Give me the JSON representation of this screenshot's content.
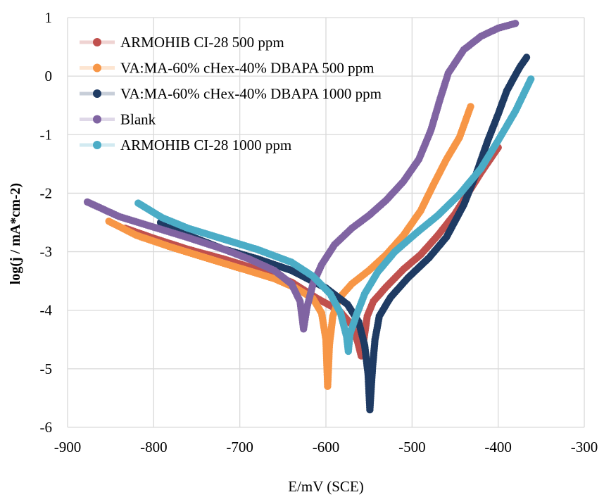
{
  "chart_data": {
    "type": "scatter",
    "title": "",
    "xlabel": "E/mV (SCE)",
    "ylabel": "log(j / mA*cm-2)",
    "xlim": [
      -900,
      -300
    ],
    "ylim": [
      -6,
      1
    ],
    "x_ticks": [
      "-900",
      "-800",
      "-700",
      "-600",
      "-500",
      "-400",
      "-300"
    ],
    "y_ticks": [
      "1",
      "0",
      "-1",
      "-2",
      "-3",
      "-4",
      "-5",
      "-6"
    ],
    "grid": true,
    "legend_position": "top-left",
    "series": [
      {
        "name": "ARMOHIB CI-28  500 ppm",
        "color": "#c0504d",
        "points": [
          [
            -833,
            -2.6
          ],
          [
            -800,
            -2.77
          ],
          [
            -760,
            -2.96
          ],
          [
            -720,
            -3.12
          ],
          [
            -680,
            -3.3
          ],
          [
            -640,
            -3.52
          ],
          [
            -610,
            -3.8
          ],
          [
            -585,
            -4.0
          ],
          [
            -570,
            -4.25
          ],
          [
            -563,
            -4.55
          ],
          [
            -559,
            -4.78
          ],
          [
            -556,
            -4.5
          ],
          [
            -552,
            -4.1
          ],
          [
            -545,
            -3.85
          ],
          [
            -530,
            -3.6
          ],
          [
            -510,
            -3.3
          ],
          [
            -490,
            -3.05
          ],
          [
            -470,
            -2.72
          ],
          [
            -450,
            -2.35
          ],
          [
            -435,
            -2.0
          ],
          [
            -420,
            -1.65
          ],
          [
            -400,
            -1.22
          ]
        ]
      },
      {
        "name": "VA:MA-60% cHex-40% DBAPA 500 ppm",
        "color": "#f79646",
        "points": [
          [
            -852,
            -2.48
          ],
          [
            -820,
            -2.72
          ],
          [
            -780,
            -2.92
          ],
          [
            -740,
            -3.1
          ],
          [
            -700,
            -3.28
          ],
          [
            -660,
            -3.46
          ],
          [
            -635,
            -3.62
          ],
          [
            -615,
            -3.8
          ],
          [
            -605,
            -4.05
          ],
          [
            -600,
            -4.5
          ],
          [
            -598,
            -5.3
          ],
          [
            -596,
            -4.6
          ],
          [
            -592,
            -4.1
          ],
          [
            -585,
            -3.8
          ],
          [
            -570,
            -3.55
          ],
          [
            -550,
            -3.32
          ],
          [
            -530,
            -3.05
          ],
          [
            -510,
            -2.72
          ],
          [
            -490,
            -2.3
          ],
          [
            -475,
            -1.85
          ],
          [
            -460,
            -1.42
          ],
          [
            -445,
            -1.05
          ],
          [
            -432,
            -0.52
          ]
        ]
      },
      {
        "name": "VA:MA-60% cHex-40% DBAPA 1000 ppm",
        "color": "#1f3b63",
        "points": [
          [
            -792,
            -2.5
          ],
          [
            -760,
            -2.72
          ],
          [
            -720,
            -2.95
          ],
          [
            -680,
            -3.12
          ],
          [
            -640,
            -3.32
          ],
          [
            -600,
            -3.62
          ],
          [
            -575,
            -3.9
          ],
          [
            -562,
            -4.2
          ],
          [
            -555,
            -4.6
          ],
          [
            -551,
            -5.1
          ],
          [
            -549,
            -5.7
          ],
          [
            -546,
            -5.0
          ],
          [
            -543,
            -4.5
          ],
          [
            -538,
            -4.1
          ],
          [
            -525,
            -3.78
          ],
          [
            -505,
            -3.45
          ],
          [
            -480,
            -3.1
          ],
          [
            -460,
            -2.75
          ],
          [
            -440,
            -2.2
          ],
          [
            -425,
            -1.65
          ],
          [
            -412,
            -1.1
          ],
          [
            -400,
            -0.65
          ],
          [
            -390,
            -0.25
          ],
          [
            -375,
            0.15
          ],
          [
            -367,
            0.32
          ]
        ]
      },
      {
        "name": "Blank",
        "color": "#8064a2",
        "points": [
          [
            -877,
            -2.15
          ],
          [
            -840,
            -2.4
          ],
          [
            -800,
            -2.58
          ],
          [
            -760,
            -2.76
          ],
          [
            -720,
            -2.95
          ],
          [
            -690,
            -3.12
          ],
          [
            -660,
            -3.32
          ],
          [
            -640,
            -3.55
          ],
          [
            -630,
            -3.85
          ],
          [
            -626,
            -4.32
          ],
          [
            -622,
            -3.95
          ],
          [
            -615,
            -3.55
          ],
          [
            -605,
            -3.22
          ],
          [
            -590,
            -2.88
          ],
          [
            -570,
            -2.6
          ],
          [
            -550,
            -2.38
          ],
          [
            -530,
            -2.12
          ],
          [
            -510,
            -1.8
          ],
          [
            -492,
            -1.42
          ],
          [
            -478,
            -0.92
          ],
          [
            -468,
            -0.42
          ],
          [
            -458,
            0.05
          ],
          [
            -440,
            0.45
          ],
          [
            -420,
            0.68
          ],
          [
            -400,
            0.82
          ],
          [
            -380,
            0.9
          ]
        ]
      },
      {
        "name": "ARMOHIB CI-28  1000 ppm",
        "color": "#4bacc6",
        "points": [
          [
            -818,
            -2.17
          ],
          [
            -790,
            -2.42
          ],
          [
            -760,
            -2.6
          ],
          [
            -720,
            -2.78
          ],
          [
            -680,
            -2.96
          ],
          [
            -640,
            -3.18
          ],
          [
            -615,
            -3.42
          ],
          [
            -595,
            -3.72
          ],
          [
            -583,
            -4.05
          ],
          [
            -576,
            -4.45
          ],
          [
            -574,
            -4.7
          ],
          [
            -572,
            -4.4
          ],
          [
            -565,
            -4.1
          ],
          [
            -555,
            -3.72
          ],
          [
            -540,
            -3.35
          ],
          [
            -520,
            -3.0
          ],
          [
            -495,
            -2.68
          ],
          [
            -470,
            -2.38
          ],
          [
            -445,
            -2.02
          ],
          [
            -420,
            -1.58
          ],
          [
            -400,
            -1.1
          ],
          [
            -380,
            -0.6
          ],
          [
            -362,
            -0.05
          ]
        ]
      }
    ]
  }
}
